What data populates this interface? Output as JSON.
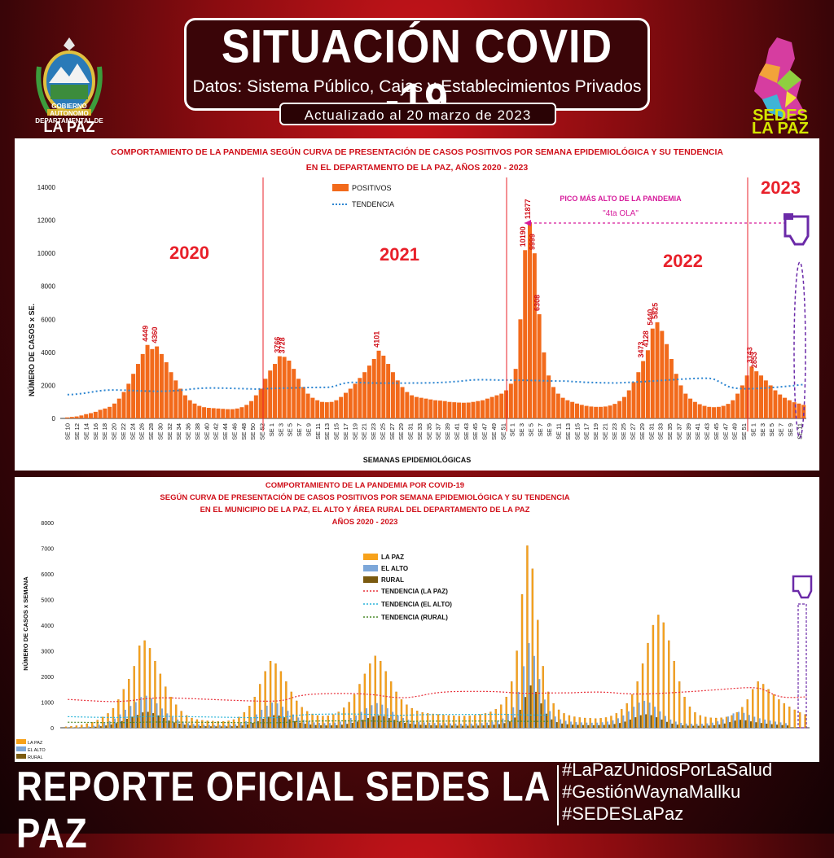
{
  "header": {
    "title": "SITUACIÓN COVID -19",
    "subtitle": "Datos: Sistema Público, Cajas y Establecimientos Privados",
    "updated": "Actualizado  al  20  marzo  de  2023",
    "left_logo_text": "GOBIERNO AUTONOMO DEPARTAMENTAL DE",
    "left_logo_name": "LA PAZ",
    "right_logo_text": "SEDES LA PAZ",
    "left_logo_icon": "coat-of-arms-icon",
    "right_logo_icon": "department-map-icon"
  },
  "footer": {
    "title": "REPORTE OFICIAL SEDES LA PAZ",
    "hashtags": [
      "#LaPazUnidosPorLaSalud",
      "#GestiónWaynaMallku",
      "#SEDESLaPaz"
    ]
  },
  "colors": {
    "bar_main": "#f26a1b",
    "trend_main": "#2e86d1",
    "la_paz": "#f7a21b",
    "el_alto": "#7da7d9",
    "rural": "#7a5a10",
    "annotation": "#d61a9b",
    "year_label": "#e8202a"
  },
  "chart_data": [
    {
      "type": "bar",
      "title": "COMPORTAMIENTO DE LA PANDEMIA SEGÚN CURVA DE PRESENTACIÓN DE CASOS POSITIVOS POR SEMANA EPIDEMIOLÓGICA Y SU TENDENCIA",
      "subtitle": "EN EL DEPARTAMENTO DE LA PAZ, AÑOS 2020 - 2023",
      "xlabel": "SEMANAS EPIDEMIOLÓGICAS",
      "ylabel": "NÚMERO DE CASOS x SE.",
      "ylim": [
        0,
        14000
      ],
      "yticks": [
        0,
        2000,
        4000,
        6000,
        8000,
        10000,
        12000,
        14000
      ],
      "legend": [
        "POSITIVOS",
        "TENDENCIA"
      ],
      "legend_position": "top-center",
      "years": [
        "2020",
        "2021",
        "2022",
        "2023"
      ],
      "annotation_title": "PICO MÁS ALTO DE LA PANDEMIA",
      "annotation_sub": "\"4ta OLA\"",
      "peak_labels": [
        "4449",
        "4360",
        "3766",
        "3728",
        "4101",
        "10190",
        "11877",
        "9999",
        "6308",
        "5825",
        "5440",
        "4128",
        "3473",
        "3143",
        "2853"
      ],
      "x_start_label": "SE 10",
      "tick_labels": [
        "SE 10",
        "SE 12",
        "SE 14",
        "SE 16",
        "SE 18",
        "SE 20",
        "SE 22",
        "SE 24",
        "SE 26",
        "SE 28",
        "SE 30",
        "SE 32",
        "SE 34",
        "SE 36",
        "SE 38",
        "SE 40",
        "SE 42",
        "SE 44",
        "SE 46",
        "SE 48",
        "SE 50",
        "SE 52",
        "SE 1",
        "SE 3",
        "SE 5",
        "SE 7",
        "SE 9",
        "SE 11",
        "SE 13",
        "SE 15",
        "SE 17",
        "SE 19",
        "SE 21",
        "SE 23",
        "SE 25",
        "SE 27",
        "SE 29",
        "SE 31",
        "SE 33",
        "SE 35",
        "SE 37",
        "SE 39",
        "SE 41",
        "SE 43",
        "SE 45",
        "SE 47",
        "SE 49",
        "SE 51",
        "SE 1",
        "SE 3",
        "SE 5",
        "SE 7",
        "SE 9",
        "SE 11",
        "SE 13",
        "SE 15",
        "SE 17",
        "SE 19",
        "SE 21",
        "SE 23",
        "SE 25",
        "SE 27",
        "SE 29",
        "SE 31",
        "SE 33",
        "SE 35",
        "SE 37",
        "SE 39",
        "SE 41",
        "SE 43",
        "SE 45",
        "SE 47",
        "SE 49",
        "SE 51",
        "SE 1",
        "SE 3",
        "SE 5",
        "SE 7",
        "SE 9",
        "SE 11"
      ],
      "values": [
        60,
        90,
        120,
        180,
        260,
        320,
        400,
        520,
        600,
        700,
        900,
        1200,
        1600,
        2100,
        2700,
        3300,
        3900,
        4449,
        4200,
        4360,
        3900,
        3400,
        2800,
        2300,
        1800,
        1400,
        1100,
        900,
        760,
        680,
        640,
        620,
        600,
        580,
        560,
        560,
        600,
        680,
        820,
        1050,
        1400,
        1800,
        2400,
        2900,
        3300,
        3766,
        3728,
        3500,
        3000,
        2400,
        1900,
        1500,
        1250,
        1100,
        1000,
        980,
        1000,
        1100,
        1300,
        1550,
        1800,
        2100,
        2450,
        2800,
        3200,
        3600,
        4101,
        3800,
        3300,
        2800,
        2300,
        1900,
        1600,
        1400,
        1300,
        1250,
        1200,
        1150,
        1100,
        1080,
        1050,
        1000,
        980,
        960,
        950,
        960,
        1000,
        1050,
        1100,
        1200,
        1300,
        1400,
        1500,
        1700,
        2100,
        3000,
        6000,
        10190,
        11877,
        9999,
        6308,
        4000,
        2600,
        1900,
        1500,
        1250,
        1100,
        1000,
        900,
        820,
        760,
        720,
        700,
        700,
        720,
        780,
        880,
        1050,
        1300,
        1700,
        2200,
        2800,
        3473,
        4128,
        5440,
        5825,
        5300,
        4500,
        3600,
        2700,
        2000,
        1500,
        1200,
        1000,
        860,
        760,
        700,
        680,
        700,
        760,
        880,
        1100,
        1500,
        2000,
        2600,
        3143,
        2853,
        2600,
        2300,
        2000,
        1700,
        1450,
        1250,
        1100,
        980,
        900,
        820
      ]
    },
    {
      "type": "bar",
      "title": "COMPORTAMIENTO DE LA PANDEMIA POR COVID-19",
      "subtitle": "SEGÚN CURVA DE PRESENTACIÓN DE CASOS POSITIVOS POR SEMANA EPIDEMIOLÓGICA Y SU TENDENCIA",
      "subtitle2": "EN EL  MUNICIPIO DE LA PAZ, EL ALTO Y ÁREA RURAL DEL DEPARTAMENTO DE LA PAZ",
      "subtitle3": "AÑOS 2020 - 2023",
      "ylabel": "NÚMERO DE CASOS x SEMANA",
      "ylim": [
        0,
        8000
      ],
      "yticks": [
        0,
        1000,
        2000,
        3000,
        4000,
        5000,
        6000,
        7000,
        8000
      ],
      "legend": [
        "LA PAZ",
        "EL ALTO",
        "RURAL",
        "TENDENCIA (LA PAZ)",
        "TENDENCIA (EL ALTO)",
        "TENDENCIA (RURAL)"
      ],
      "legend_position": "top-center",
      "row_labels": [
        "LA PAZ",
        "EL ALTO",
        "RURAL"
      ],
      "series": [
        {
          "name": "LA PAZ",
          "values": [
            40,
            60,
            80,
            110,
            160,
            220,
            300,
            420,
            560,
            760,
            1100,
            1500,
            1900,
            2400,
            3200,
            3400,
            3100,
            2600,
            2100,
            1600,
            1200,
            900,
            650,
            480,
            380,
            320,
            290,
            270,
            260,
            250,
            250,
            270,
            320,
            420,
            600,
            850,
            1200,
            1700,
            2200,
            2600,
            2500,
            2200,
            1800,
            1400,
            1050,
            800,
            640,
            540,
            480,
            460,
            470,
            520,
            620,
            780,
            1000,
            1300,
            1700,
            2100,
            2500,
            2800,
            2600,
            2200,
            1800,
            1400,
            1100,
            900,
            760,
            660,
            600,
            560,
            540,
            520,
            500,
            480,
            470,
            460,
            460,
            470,
            490,
            520,
            560,
            620,
            720,
            900,
            1200,
            1800,
            3000,
            5200,
            7100,
            6200,
            4200,
            2400,
            1400,
            950,
            700,
            560,
            480,
            430,
            400,
            380,
            370,
            360,
            370,
            400,
            460,
            560,
            720,
            950,
            1300,
            1800,
            2500,
            3300,
            4000,
            4400,
            4100,
            3400,
            2600,
            1800,
            1200,
            820,
            600,
            480,
            420,
            390,
            380,
            390,
            420,
            480,
            600,
            800,
            1100,
            1500,
            1800,
            1700,
            1500,
            1300,
            1100,
            950,
            820,
            700,
            600,
            520
          ]
        },
        {
          "name": "EL ALTO",
          "values": [
            10,
            15,
            20,
            30,
            50,
            80,
            120,
            180,
            260,
            360,
            520,
            700,
            850,
            1000,
            1200,
            1250,
            1150,
            950,
            750,
            560,
            420,
            320,
            240,
            180,
            150,
            130,
            120,
            110,
            110,
            110,
            110,
            120,
            140,
            180,
            260,
            380,
            520,
            700,
            860,
            980,
            950,
            820,
            660,
            520,
            400,
            310,
            250,
            210,
            190,
            180,
            185,
            200,
            240,
            300,
            380,
            480,
            620,
            760,
            880,
            960,
            900,
            760,
            620,
            480,
            380,
            310,
            260,
            230,
            210,
            195,
            185,
            180,
            175,
            170,
            165,
            160,
            160,
            165,
            170,
            180,
            200,
            230,
            280,
            360,
            500,
            800,
            1400,
            2400,
            3300,
            2800,
            1900,
            1100,
            650,
            440,
            330,
            270,
            240,
            220,
            210,
            200,
            195,
            200,
            215,
            240,
            290,
            370,
            480,
            640,
            820,
            980,
            1050,
            980,
            820,
            640,
            460,
            320,
            240,
            190,
            165,
            155,
            150,
            155,
            170,
            200,
            250,
            330,
            440,
            560,
            620,
            580,
            500,
            430,
            370,
            320,
            280,
            240,
            210,
            180
          ]
        },
        {
          "name": "RURAL",
          "values": [
            5,
            8,
            10,
            15,
            25,
            40,
            60,
            90,
            130,
            180,
            260,
            350,
            430,
            500,
            600,
            620,
            570,
            480,
            380,
            280,
            210,
            160,
            120,
            90,
            75,
            65,
            60,
            55,
            55,
            55,
            55,
            60,
            70,
            90,
            130,
            190,
            260,
            350,
            430,
            490,
            475,
            410,
            330,
            260,
            200,
            155,
            125,
            105,
            95,
            90,
            92,
            100,
            120,
            150,
            190,
            240,
            310,
            380,
            440,
            480,
            450,
            380,
            310,
            240,
            190,
            155,
            130,
            115,
            105,
            98,
            92,
            90,
            88,
            85,
            82,
            80,
            80,
            82,
            85,
            90,
            100,
            115,
            140,
            180,
            250,
            400,
            700,
            1200,
            1650,
            1400,
            950,
            550,
            325,
            220,
            165,
            135,
            120,
            110,
            105,
            100,
            98,
            100,
            108,
            120,
            145,
            185,
            240,
            320,
            410,
            490,
            525,
            490,
            410,
            320,
            230,
            160,
            120,
            95,
            82,
            78,
            75,
            78,
            85,
            100,
            125,
            165,
            220,
            280,
            310,
            290,
            250,
            215,
            185,
            160,
            140,
            120,
            105,
            90
          ]
        }
      ]
    }
  ]
}
